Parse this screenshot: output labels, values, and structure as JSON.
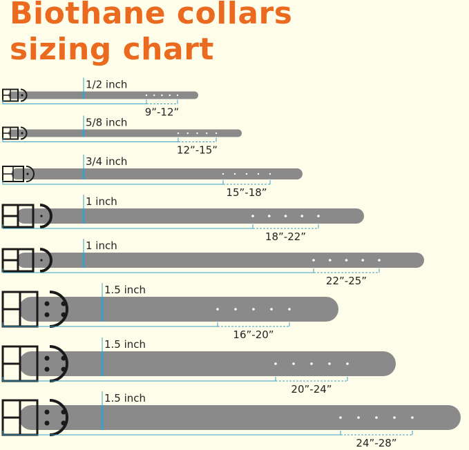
{
  "title": {
    "line1": "Biothane collars",
    "line2": "sizing chart"
  },
  "colors": {
    "title": "#ea6a1f",
    "strap": "#8a8a8a",
    "measure_line": "#3aa0c8",
    "background": "#fdfde9",
    "hardware": "#1a1a1a"
  },
  "collars": [
    {
      "width": "1/2 inch",
      "size": "9”-12”"
    },
    {
      "width": "5/8 inch",
      "size": "12”-15”"
    },
    {
      "width": "3/4 inch",
      "size": "15”-18”"
    },
    {
      "width": "1 inch",
      "size": "18”-22”"
    },
    {
      "width": "1 inch",
      "size": "22”-25”"
    },
    {
      "width": "1.5 inch",
      "size": "16”-20”"
    },
    {
      "width": "1.5 inch",
      "size": "20”-24”"
    },
    {
      "width": "1.5 inch",
      "size": "24”-28”"
    }
  ]
}
